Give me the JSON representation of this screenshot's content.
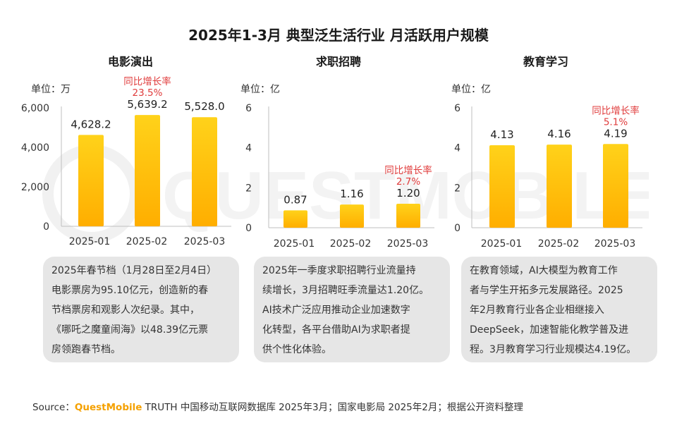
{
  "title": "2025年1-3月 典型泛生活行业 月活跃用户规模",
  "colors": {
    "bar_top": "#FFD21A",
    "bar_bottom": "#FFAE00",
    "growth_text": "#E03C3C",
    "note_bg": "#E6E6E6",
    "brand": "#F5A100"
  },
  "watermark": "QUESTMOBILE",
  "chart_data": [
    {
      "type": "bar",
      "title": "电影演出",
      "unit_label": "单位：万",
      "categories": [
        "2025-01",
        "2025-02",
        "2025-03"
      ],
      "values": [
        4628.2,
        5639.2,
        5528.0
      ],
      "value_labels": [
        "4,628.2",
        "5,639.2",
        "5,528.0"
      ],
      "ylim": [
        0,
        6000
      ],
      "yticks": [
        "0",
        "2,000",
        "4,000",
        "6,000"
      ],
      "growth": {
        "label": "同比增长率",
        "value": "23.5%",
        "category_index": 1
      }
    },
    {
      "type": "bar",
      "title": "求职招聘",
      "unit_label": "单位：亿",
      "categories": [
        "2025-01",
        "2025-02",
        "2025-03"
      ],
      "values": [
        0.87,
        1.16,
        1.2
      ],
      "value_labels": [
        "0.87",
        "1.16",
        "1.20"
      ],
      "ylim": [
        0,
        6
      ],
      "yticks": [
        "0",
        "2",
        "4",
        "6"
      ],
      "growth": {
        "label": "同比增长率",
        "value": "2.7%",
        "category_index": 2
      }
    },
    {
      "type": "bar",
      "title": "教育学习",
      "unit_label": "单位：亿",
      "categories": [
        "2025-01",
        "2025-02",
        "2025-03"
      ],
      "values": [
        4.13,
        4.16,
        4.19
      ],
      "value_labels": [
        "4.13",
        "4.16",
        "4.19"
      ],
      "ylim": [
        0,
        6
      ],
      "yticks": [
        "0",
        "2",
        "4",
        "6"
      ],
      "growth": {
        "label": "同比增长率",
        "value": "5.1%",
        "category_index": 2
      }
    }
  ],
  "notes": [
    [
      "2025年春节档（1月28日至2月4日）",
      "电影票房为95.10亿元，创造新的春",
      "节档票房和观影人次纪录。其中，",
      "《哪吒之魔童闹海》以48.39亿元票",
      "房领跑春节档。"
    ],
    [
      "2025年一季度求职招聘行业流量持",
      "续增长，3月招聘旺季流量达1.20亿。",
      "AI技术广泛应用推动企业加速数字",
      "化转型，各平台借助AI为求职者提",
      "供个性化体验。"
    ],
    [
      "在教育领域，AI大模型为教育工作",
      "者与学生开拓多元发展路径。2025",
      "年2月教育行业各企业相继接入",
      "DeepSeek，加速智能化教学普及进",
      "程。3月教育学习行业规模达4.19亿。"
    ]
  ],
  "source": {
    "prefix": "Source：",
    "brand": "QuestMobile",
    "rest": " TRUTH 中国移动互联网数据库 2025年3月；国家电影局 2025年2月；根据公开资料整理"
  }
}
